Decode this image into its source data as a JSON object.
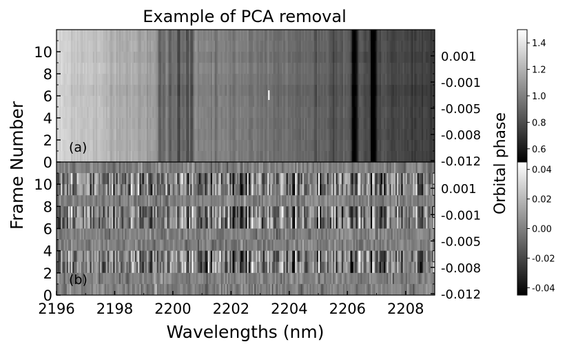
{
  "chart_data": [
    {
      "type": "heatmap",
      "panel_label": "(a)",
      "title": "Example of PCA removal",
      "ylabel": "Frame Number",
      "y2label": "Orbital phase",
      "ylim": [
        0,
        12
      ],
      "xlim": [
        2196,
        2209
      ],
      "yticks": [
        "0",
        "2",
        "4",
        "6",
        "8",
        "10"
      ],
      "y2ticks": [
        "-0.012",
        "-0.008",
        "-0.005",
        "-0.001",
        "0.001"
      ],
      "colormap": "gray",
      "colorbar": {
        "ticks": [
          "0.6",
          "0.8",
          "1.0",
          "1.2",
          "1.4"
        ],
        "range": [
          0.5,
          1.5
        ]
      },
      "continuum": [
        {
          "wavelength": 2196.0,
          "value": 1.33
        },
        {
          "wavelength": 2198.0,
          "value": 1.2
        },
        {
          "wavelength": 2200.0,
          "value": 1.07
        },
        {
          "wavelength": 2203.0,
          "value": 0.95
        },
        {
          "wavelength": 2206.0,
          "value": 0.85
        },
        {
          "wavelength": 2209.0,
          "value": 0.72
        }
      ],
      "absorption_lines": [
        {
          "wavelength": 2199.55,
          "depth": 0.25
        },
        {
          "wavelength": 2199.7,
          "depth": 0.22
        },
        {
          "wavelength": 2199.9,
          "depth": 0.3
        },
        {
          "wavelength": 2200.05,
          "depth": 0.2
        },
        {
          "wavelength": 2200.2,
          "depth": 0.32
        },
        {
          "wavelength": 2200.35,
          "depth": 0.22
        },
        {
          "wavelength": 2200.5,
          "depth": 0.3
        },
        {
          "wavelength": 2200.65,
          "depth": 0.25
        },
        {
          "wavelength": 2201.5,
          "depth": 0.1
        },
        {
          "wavelength": 2202.1,
          "depth": 0.08
        },
        {
          "wavelength": 2204.9,
          "depth": 0.1
        },
        {
          "wavelength": 2205.5,
          "depth": 0.12
        },
        {
          "wavelength": 2206.2,
          "depth": 0.4
        },
        {
          "wavelength": 2206.3,
          "depth": 0.25
        },
        {
          "wavelength": 2206.85,
          "depth": 0.45
        },
        {
          "wavelength": 2206.95,
          "depth": 0.3
        }
      ],
      "hot_pixel": {
        "wavelength": 2203.3,
        "frame": 6.0,
        "value": 1.5
      }
    },
    {
      "type": "heatmap",
      "panel_label": "(b)",
      "xlabel": "Wavelengths (nm)",
      "xlim": [
        2196,
        2209
      ],
      "xticks": [
        "2196",
        "2198",
        "2200",
        "2202",
        "2204",
        "2206",
        "2208"
      ],
      "ylim": [
        0,
        12
      ],
      "yticks": [
        "0",
        "2",
        "4",
        "6",
        "8",
        "10"
      ],
      "y2ticks": [
        "-0.012",
        "-0.008",
        "-0.005",
        "-0.001",
        "0.001"
      ],
      "colormap": "gray",
      "colorbar": {
        "ticks": [
          "-0.04",
          "-0.02",
          "0.00",
          "0.02",
          "0.04"
        ],
        "range": [
          -0.045,
          0.045
        ]
      },
      "residual_noise_sigma": 0.012,
      "high_variance_frames": [
        2,
        3,
        6,
        7,
        9,
        10
      ]
    }
  ]
}
